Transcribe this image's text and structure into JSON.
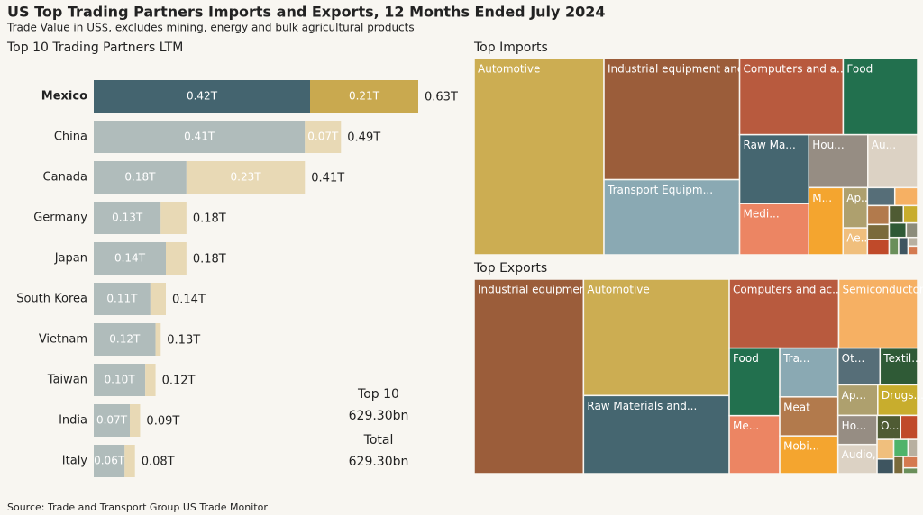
{
  "title": "US Top Trading Partners Imports and Exports, 12 Months Ended July 2024",
  "subtitle": "Trade Value in US$, excludes mining, energy and bulk agricultural products",
  "source": "Source: Trade and Transport Group US Trade Monitor",
  "chart_data": [
    {
      "type": "stacked-hbar",
      "title": "Top 10 Trading Partners LTM",
      "categories": [
        "Mexico",
        "China",
        "Canada",
        "Germany",
        "Japan",
        "South Korea",
        "Vietnam",
        "Taiwan",
        "India",
        "Italy"
      ],
      "highlight_index": 0,
      "series": [
        {
          "color": "#b0bcbb",
          "highlight_color": "#44646f",
          "values": [
            0.42,
            0.41,
            0.18,
            0.13,
            0.14,
            0.11,
            0.12,
            0.1,
            0.07,
            0.06
          ],
          "value_labels": [
            "0.42T",
            "0.41T",
            "0.18T",
            "0.13T",
            "0.14T",
            "0.11T",
            "0.12T",
            "0.10T",
            "0.07T",
            "0.06T"
          ]
        },
        {
          "color": "#e8d9b5",
          "highlight_color": "#c9a94f",
          "values": [
            0.21,
            0.07,
            0.23,
            0.05,
            0.04,
            0.03,
            0.01,
            0.02,
            0.02,
            0.02
          ],
          "value_labels": [
            "0.21T",
            "0.07T",
            "0.23T",
            null,
            null,
            null,
            null,
            null,
            null,
            null
          ]
        }
      ],
      "totals": {
        "values": [
          0.63,
          0.49,
          0.41,
          0.18,
          0.18,
          0.14,
          0.13,
          0.12,
          0.09,
          0.08
        ],
        "value_labels": [
          "0.63T",
          "0.49T",
          "0.41T",
          "0.18T",
          "0.18T",
          "0.14T",
          "0.13T",
          "0.12T",
          "0.09T",
          "0.08T"
        ]
      },
      "summary": [
        [
          "Top 10",
          "629.30bn"
        ],
        [
          "Total",
          "629.30bn"
        ]
      ]
    },
    {
      "type": "treemap",
      "title": "Top Imports",
      "labels": [
        "Automotive",
        "Industrial equipment and parts",
        "Transport Equipm...",
        "Computers and a...",
        "Food",
        "Raw Ma...",
        "Medi...",
        "Hou...",
        "Au...",
        "M...",
        "Ap...",
        "Ae...",
        null,
        null,
        null,
        null,
        null,
        null,
        null,
        null,
        null,
        null,
        null,
        null,
        null
      ],
      "values": [
        310,
        200,
        124,
        96,
        69,
        58,
        43,
        38,
        32,
        28,
        12,
        8,
        6,
        5,
        5,
        4,
        4,
        3,
        3,
        3,
        2,
        2,
        2,
        1,
        1
      ],
      "colors": [
        "#ccad52",
        "#9b5d3a",
        "#8aa9b3",
        "#b85a3e",
        "#22704e",
        "#456670",
        "#ec8563",
        "#968d83",
        "#dcd2c4",
        "#f4a52f",
        "#aea06e",
        "#f0bf7d",
        "#566e78",
        "#f6b063",
        "#b27a4c",
        "#7a6a3a",
        "#c04a2a",
        "#4f5b33",
        "#c8ad2d",
        "#2f5a36",
        "#8c8c7a",
        "#6a8f5a",
        "#3e5560",
        "#b8b0a0",
        "#d47a50"
      ]
    },
    {
      "type": "treemap",
      "title": "Top Exports",
      "labels": [
        "Industrial equipment and parts",
        "Automotive",
        "Raw Materials and...",
        "Computers and ac...",
        "Semiconductors a...",
        "Food",
        "Me...",
        "Tra...",
        "Meat",
        "Mobi...",
        "Ot...",
        "Textil...",
        "Ap...",
        "Drugs...",
        "Ho...",
        "Audio,...",
        "O...",
        null,
        null,
        null,
        null,
        null,
        null,
        null,
        null
      ],
      "values": [
        262,
        209,
        140,
        93,
        67,
        42,
        36,
        35,
        28,
        27,
        19,
        17,
        15,
        15,
        14,
        14,
        7,
        5,
        4,
        3,
        3,
        2,
        2,
        2,
        1
      ],
      "colors": [
        "#9b5d3a",
        "#ccad52",
        "#456670",
        "#b85a3e",
        "#f6b063",
        "#22704e",
        "#ec8563",
        "#8aa9b3",
        "#b27a4c",
        "#f4a52f",
        "#566e78",
        "#2f5a36",
        "#aea06e",
        "#c8ad2d",
        "#968d83",
        "#dcd2c4",
        "#4f5b33",
        "#c04a2a",
        "#f0bf7d",
        "#3e5560",
        "#4fb36a",
        "#b8b0a0",
        "#7a6a3a",
        "#d47a50",
        "#6a8f5a"
      ]
    }
  ]
}
